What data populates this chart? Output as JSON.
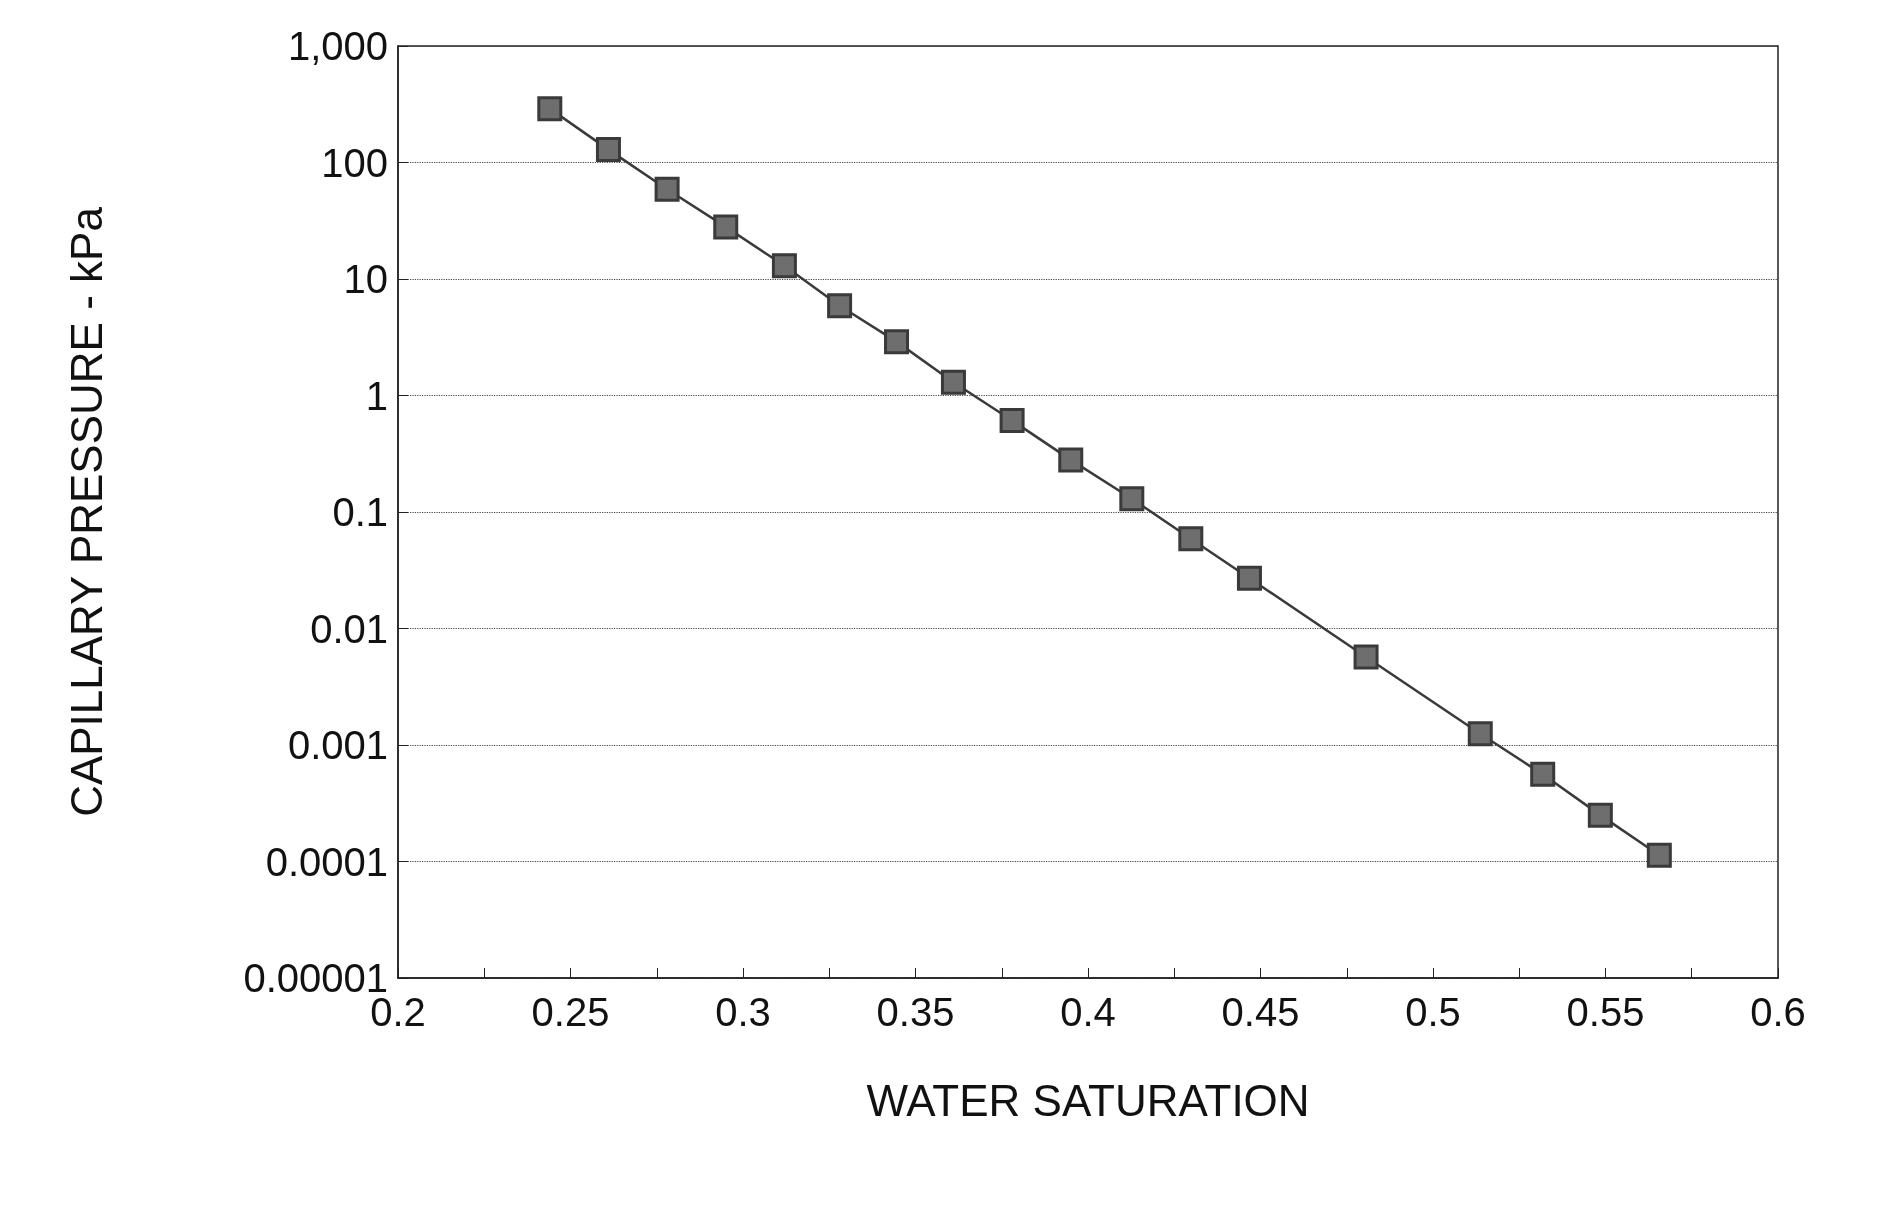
{
  "chart_data": {
    "type": "line",
    "xlabel": "WATER SATURATION",
    "ylabel": "CAPILLARY PRESSURE - kPa",
    "log": "y",
    "grid": "y",
    "marker": "square",
    "line_style": "solid",
    "xlim": [
      0.2,
      0.6
    ],
    "xticks": [
      0.2,
      {
        "value": 0.225,
        "label": null
      },
      0.25,
      {
        "value": 0.275,
        "label": null
      },
      0.3,
      {
        "value": 0.325,
        "label": null
      },
      0.35,
      {
        "value": 0.375,
        "label": null
      },
      0.4,
      {
        "value": 0.425,
        "label": null
      },
      0.45,
      {
        "value": 0.475,
        "label": null
      },
      0.5,
      {
        "value": 0.525,
        "label": null
      },
      0.55,
      {
        "value": 0.575,
        "label": null
      },
      0.6
    ],
    "ylim": [
      1e-05,
      1000
    ],
    "yticks": [
      {
        "value": 1e-05,
        "label": "0.00001"
      },
      0.0001,
      0.001,
      0.01,
      0.1,
      1,
      10,
      100,
      {
        "value": 1000,
        "label": "1,000"
      }
    ],
    "series": [
      {
        "color": "#3a3a3a",
        "x": [
          0.244,
          0.261,
          0.278,
          0.295,
          0.312,
          0.328,
          0.3445,
          0.361,
          0.378,
          0.395,
          0.4127,
          0.4298,
          0.4468,
          0.4806,
          0.5137,
          0.5318,
          0.5485,
          0.5656
        ],
        "values": [
          290,
          129,
          59,
          28,
          13,
          5.9,
          2.9,
          1.3,
          0.61,
          0.28,
          0.13,
          0.059,
          0.027,
          0.0057,
          0.00125,
          0.00056,
          0.00025,
          0.000113
        ]
      }
    ]
  }
}
